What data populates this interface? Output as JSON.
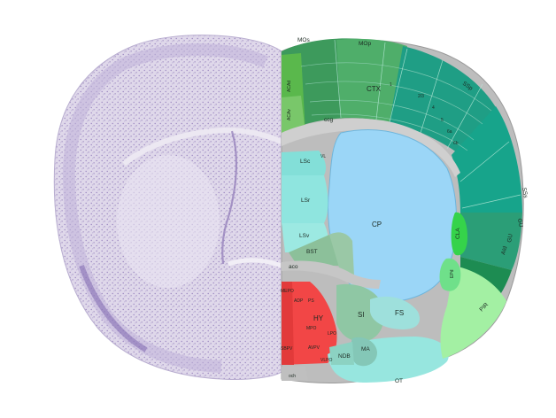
{
  "figure": {
    "region_labels": {
      "MOs": "MOs",
      "MOp": "MOp",
      "SSp": "SSp",
      "SSs": "SSs",
      "GU": "GU",
      "AId": "AId",
      "AIv": "AIv",
      "ACAd": "ACAd",
      "ACAv": "ACAv",
      "CTX": "CTX",
      "CP": "CP",
      "LSc": "LSc",
      "LSr": "LSr",
      "LSv": "LSv",
      "BST": "BST",
      "HY": "HY",
      "SI": "SI",
      "FS": "FS",
      "MA": "MA",
      "NDB": "NDB",
      "CLA": "CLA",
      "EPd": "EPd",
      "PIR": "PIR",
      "OT": "OT",
      "VL": "VL",
      "ccg": "ccg",
      "aco": "aco",
      "och": "och",
      "ADP": "ADP",
      "PS": "PS",
      "LPO": "LPO",
      "MPO": "MPO",
      "AVPV": "AVPV",
      "VLPO": "VLPO",
      "MEPO": "MEPO",
      "SBPV": "SBPV",
      "ACB": "ACB"
    },
    "cortex_layer_labels": [
      "1",
      "2/3",
      "4",
      "5",
      "6a",
      "6b"
    ],
    "colors": {
      "nissl_fill": "#d8cfe6",
      "nissl_dark": "#a996c8",
      "isocortex_light": "#59c46e",
      "isocortex_mid": "#3aa17f",
      "isocortex_teal": "#16a58c",
      "striatum": "#98d6f9",
      "lateral_septum": "#8ee3dc",
      "pallidum": "#8cc39a",
      "hypothalamus": "#f04a4a",
      "olfactory": "#9ef0a4",
      "fiber_tracts": "#c8c8c8"
    }
  }
}
